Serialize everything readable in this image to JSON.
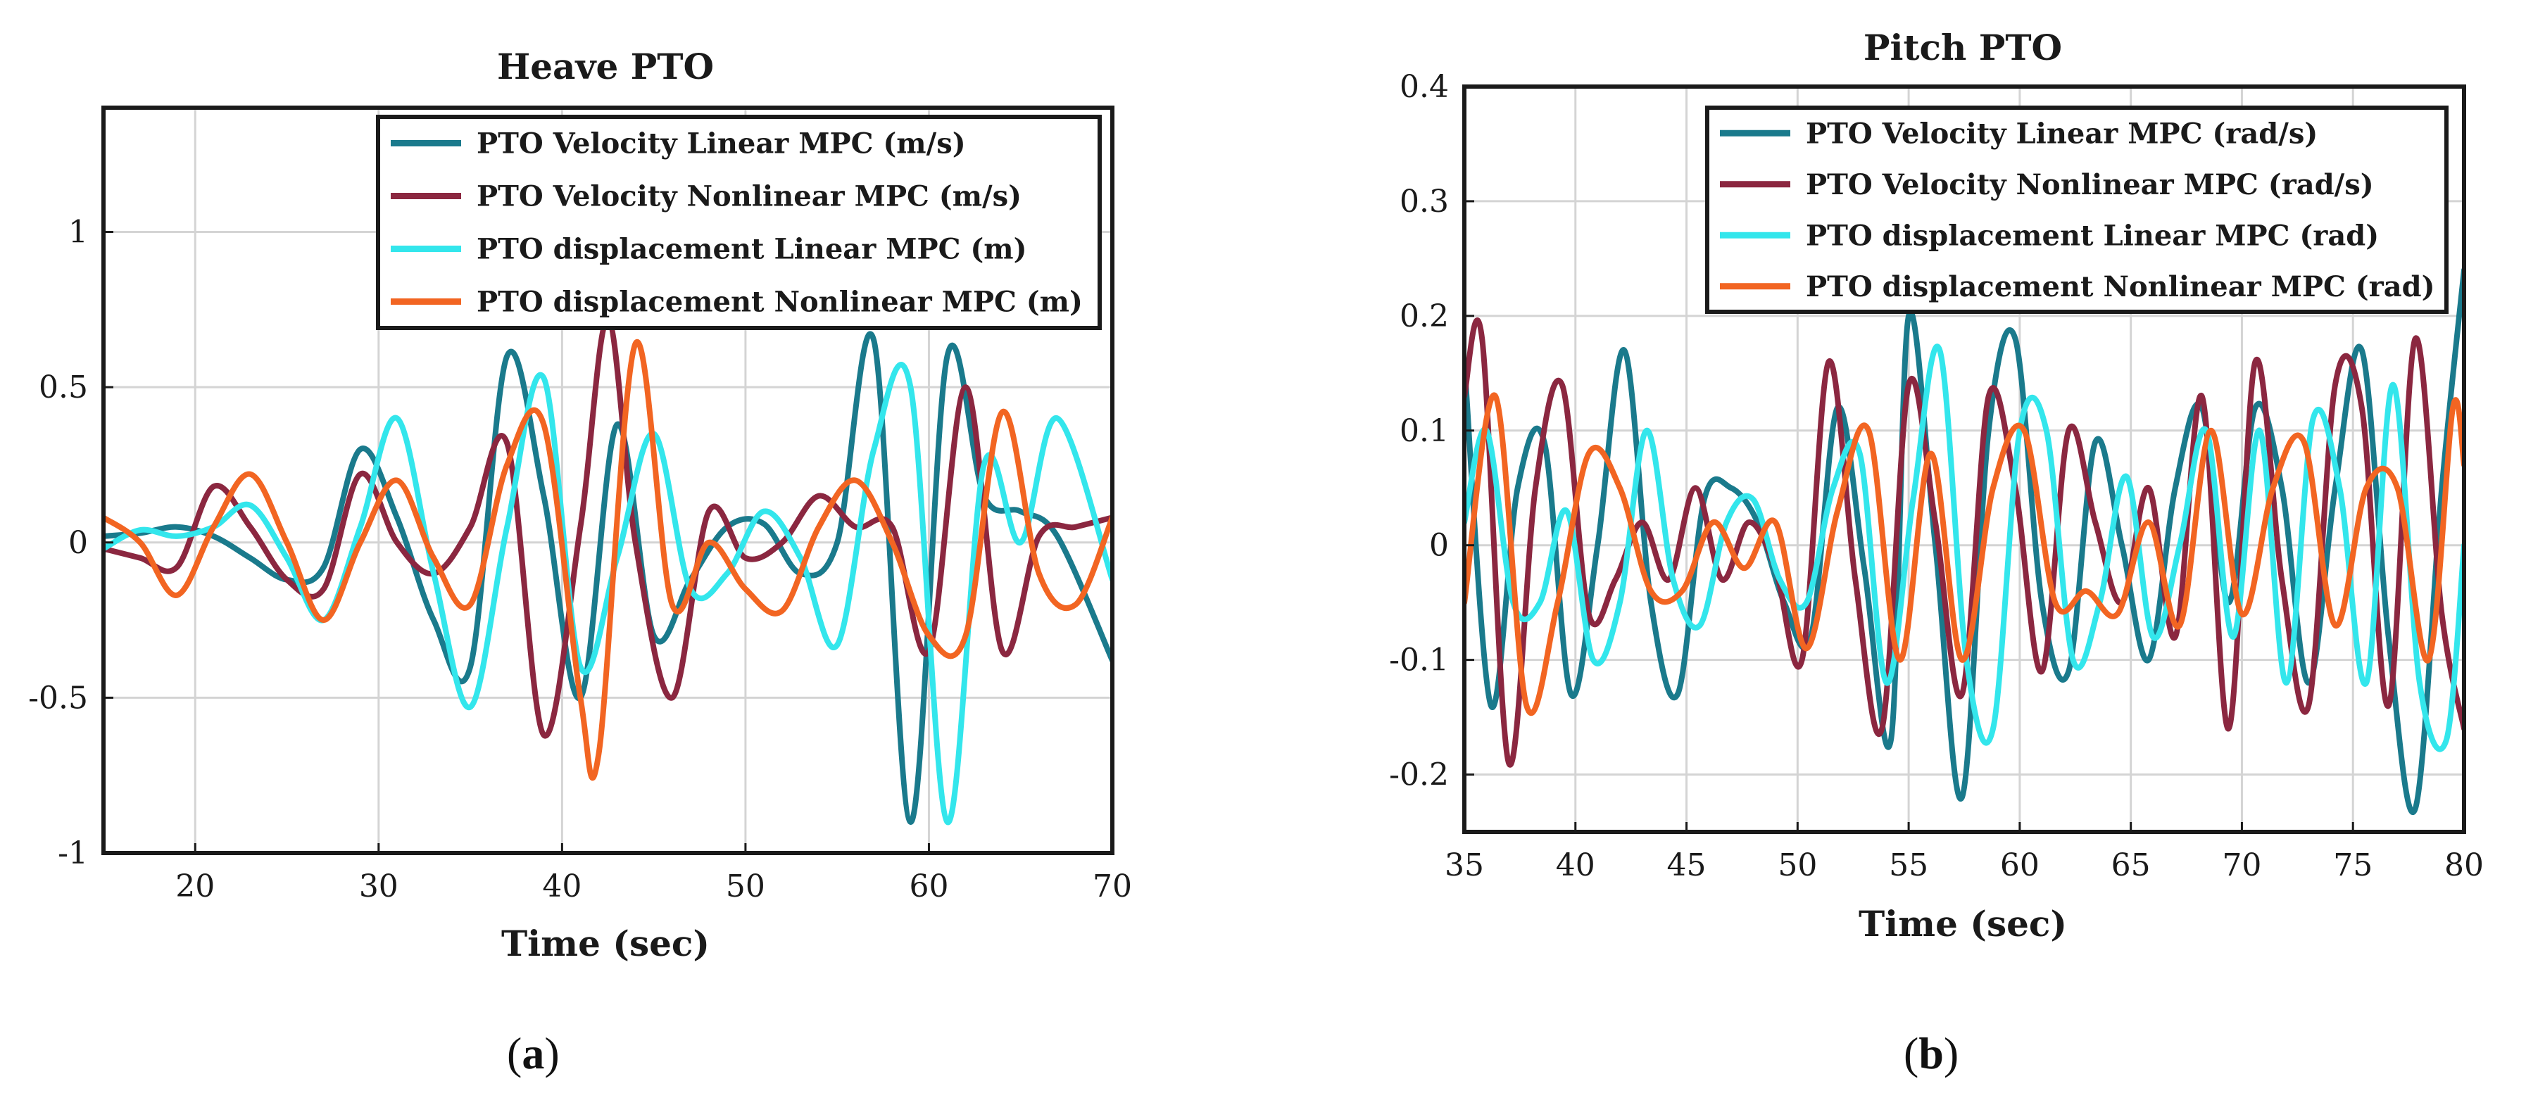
{
  "figure": {
    "captions": [
      {
        "open": "(",
        "letter": "a",
        "close": ")"
      },
      {
        "open": "(",
        "letter": "b",
        "close": ")"
      }
    ]
  },
  "chart_data": [
    {
      "type": "line",
      "title": "Heave PTO",
      "xlabel": "Time (sec)",
      "ylabel": "",
      "xlim": [
        15,
        70
      ],
      "ylim": [
        -1,
        1.4
      ],
      "xticks": [
        20,
        30,
        40,
        50,
        60,
        70
      ],
      "xtick_labels": [
        "20",
        "30",
        "40",
        "50",
        "60",
        "70"
      ],
      "yticks": [
        -1,
        -0.5,
        0,
        0.5,
        1
      ],
      "ytick_labels": [
        "-1",
        "-0.5",
        "0",
        "0.5",
        "1"
      ],
      "grid": true,
      "legend_position": "top-right",
      "series": [
        {
          "name": "PTO Velocity Linear MPC (m/s)",
          "color": "#1a7a8c",
          "x": [
            15,
            17,
            19,
            21,
            23,
            25,
            27,
            29,
            31,
            33,
            35,
            37,
            39,
            41,
            43,
            45,
            47,
            49,
            51,
            53,
            55,
            57,
            59,
            61,
            63,
            65,
            67,
            70
          ],
          "y": [
            0.02,
            0.03,
            0.05,
            0.02,
            -0.05,
            -0.12,
            -0.08,
            0.3,
            0.08,
            -0.25,
            -0.4,
            0.6,
            0.15,
            -0.5,
            0.38,
            -0.3,
            -0.12,
            0.05,
            0.06,
            -0.1,
            0.0,
            0.65,
            -0.9,
            0.6,
            0.15,
            0.1,
            0.02,
            -0.38
          ]
        },
        {
          "name": "PTO Velocity Nonlinear MPC (m/s)",
          "color": "#8b2740",
          "x": [
            15,
            17,
            19,
            21,
            23,
            25,
            27,
            29,
            31,
            33,
            35,
            37,
            39,
            41,
            42.5,
            44,
            46,
            48,
            50,
            52,
            54,
            56,
            58,
            60,
            62,
            64,
            66,
            68,
            70
          ],
          "y": [
            -0.02,
            -0.05,
            -0.08,
            0.18,
            0.05,
            -0.12,
            -0.15,
            0.22,
            0.0,
            -0.1,
            0.05,
            0.32,
            -0.62,
            0.05,
            0.72,
            0.0,
            -0.5,
            0.1,
            -0.05,
            0.0,
            0.15,
            0.05,
            0.05,
            -0.35,
            0.5,
            -0.35,
            0.02,
            0.05,
            0.08
          ]
        },
        {
          "name": "PTO displacement Linear MPC (m)",
          "color": "#33e6ec",
          "x": [
            15,
            17,
            19,
            21,
            23,
            25,
            27,
            29,
            31,
            33,
            35,
            37,
            39,
            41,
            43,
            45,
            47,
            49,
            51,
            53,
            55,
            57,
            59,
            61,
            63,
            65,
            67,
            70
          ],
          "y": [
            -0.02,
            0.04,
            0.02,
            0.05,
            0.12,
            -0.05,
            -0.25,
            0.05,
            0.4,
            -0.1,
            -0.53,
            0.05,
            0.53,
            -0.4,
            -0.05,
            0.35,
            -0.15,
            -0.1,
            0.1,
            -0.05,
            -0.33,
            0.3,
            0.5,
            -0.9,
            0.25,
            0.0,
            0.4,
            -0.12
          ]
        },
        {
          "name": "PTO displacement Nonlinear MPC (m)",
          "color": "#f26522",
          "x": [
            15,
            17,
            19,
            21,
            23,
            25,
            27,
            29,
            31,
            33,
            35,
            37,
            39,
            41,
            42,
            44,
            46,
            48,
            50,
            52,
            54,
            56,
            58,
            60,
            62,
            64,
            66,
            68,
            70
          ],
          "y": [
            0.08,
            0.0,
            -0.17,
            0.05,
            0.22,
            0.0,
            -0.25,
            0.0,
            0.2,
            -0.05,
            -0.2,
            0.25,
            0.38,
            -0.5,
            -0.68,
            0.64,
            -0.2,
            0.0,
            -0.15,
            -0.22,
            0.05,
            0.2,
            0.0,
            -0.3,
            -0.3,
            0.42,
            -0.1,
            -0.2,
            0.08
          ]
        }
      ]
    },
    {
      "type": "line",
      "title": "Pitch PTO",
      "xlabel": "Time (sec)",
      "ylabel": "",
      "xlim": [
        35,
        80
      ],
      "ylim": [
        -0.25,
        0.4
      ],
      "xticks": [
        35,
        40,
        45,
        50,
        55,
        60,
        65,
        70,
        75,
        80
      ],
      "xtick_labels": [
        "35",
        "40",
        "45",
        "50",
        "55",
        "60",
        "65",
        "70",
        "75",
        "80"
      ],
      "yticks": [
        -0.2,
        -0.1,
        0,
        0.1,
        0.2,
        0.3,
        0.4
      ],
      "ytick_labels": [
        "-0.2",
        "-0.1",
        "0",
        "0.1",
        "0.2",
        "0.3",
        "0.4"
      ],
      "grid": true,
      "legend_position": "top-right",
      "series": [
        {
          "name": "PTO Velocity Linear MPC (rad/s)",
          "color": "#1a7a8c",
          "x": [
            35,
            36.2,
            37.4,
            38.6,
            39.8,
            41,
            42.2,
            43.4,
            44.6,
            45.8,
            47,
            48.2,
            49.4,
            50.6,
            51.8,
            53,
            54.2,
            55,
            56.2,
            57.4,
            58.6,
            59.8,
            61,
            62.2,
            63.4,
            64.6,
            65.8,
            67,
            68.2,
            69.4,
            70.6,
            71.8,
            73,
            74.2,
            75.4,
            76.6,
            77.8,
            79,
            80
          ],
          "y": [
            0.16,
            -0.14,
            0.05,
            0.09,
            -0.13,
            0.0,
            0.17,
            -0.05,
            -0.13,
            0.04,
            0.05,
            0.02,
            -0.05,
            -0.08,
            0.12,
            -0.02,
            -0.17,
            0.2,
            0.0,
            -0.22,
            0.1,
            0.18,
            -0.05,
            -0.11,
            0.09,
            0.0,
            -0.1,
            0.05,
            0.12,
            -0.05,
            0.12,
            0.05,
            -0.12,
            0.05,
            0.17,
            -0.08,
            -0.23,
            0.05,
            0.24
          ]
        },
        {
          "name": "PTO Velocity Nonlinear MPC (rad/s)",
          "color": "#8b2740",
          "x": [
            35,
            35.8,
            37,
            38.2,
            39.4,
            40.6,
            41.8,
            43,
            44.2,
            45.4,
            46.6,
            47.8,
            49,
            50.2,
            51.4,
            52.6,
            53.8,
            55,
            56.2,
            57.4,
            58.6,
            59.8,
            61,
            62.2,
            63.4,
            64.6,
            65.8,
            67,
            68.2,
            69.4,
            70.6,
            71.8,
            73,
            74.2,
            75.4,
            76.6,
            77.8,
            79,
            80
          ],
          "y": [
            0.13,
            0.18,
            -0.19,
            0.05,
            0.14,
            -0.06,
            -0.03,
            0.02,
            -0.03,
            0.05,
            -0.03,
            0.02,
            -0.02,
            -0.1,
            0.16,
            -0.03,
            -0.16,
            0.14,
            0.02,
            -0.13,
            0.13,
            0.05,
            -0.11,
            0.1,
            0.02,
            -0.05,
            0.05,
            -0.08,
            0.13,
            -0.16,
            0.16,
            -0.03,
            -0.14,
            0.14,
            0.12,
            -0.14,
            0.18,
            -0.06,
            -0.16
          ]
        },
        {
          "name": "PTO displacement Linear MPC (rad)",
          "color": "#33e6ec",
          "x": [
            35,
            36,
            37.2,
            38.4,
            39.6,
            40.8,
            42,
            43.2,
            44.4,
            45.6,
            46.8,
            48,
            49.2,
            50.4,
            51.6,
            52.8,
            54,
            55.2,
            56.4,
            57.6,
            58.8,
            60,
            61.2,
            62.4,
            63.6,
            64.8,
            66,
            67.2,
            68.4,
            69.6,
            70.8,
            72,
            73.2,
            74.4,
            75.6,
            76.8,
            78,
            79.2,
            80
          ],
          "y": [
            0.02,
            0.1,
            -0.05,
            -0.05,
            0.03,
            -0.1,
            -0.05,
            0.1,
            -0.03,
            -0.07,
            0.02,
            0.04,
            -0.03,
            -0.05,
            0.05,
            0.08,
            -0.12,
            0.04,
            0.17,
            -0.1,
            -0.16,
            0.1,
            0.1,
            -0.1,
            -0.05,
            0.06,
            -0.08,
            0.0,
            0.1,
            -0.08,
            0.1,
            -0.12,
            0.11,
            0.05,
            -0.12,
            0.14,
            -0.12,
            -0.17,
            0.0
          ]
        },
        {
          "name": "PTO displacement Nonlinear MPC (rad)",
          "color": "#f26522",
          "x": [
            35,
            36.4,
            37.8,
            39.2,
            40.6,
            42,
            43.4,
            44.8,
            46.2,
            47.6,
            49,
            50.4,
            51.8,
            53.2,
            54.6,
            56,
            57.4,
            58.8,
            60.2,
            61.6,
            63,
            64.4,
            65.8,
            67.2,
            68.6,
            70,
            71.4,
            72.8,
            74.2,
            75.6,
            77,
            78.4,
            79.5,
            80
          ],
          "y": [
            -0.05,
            0.13,
            -0.14,
            -0.05,
            0.08,
            0.05,
            -0.04,
            -0.04,
            0.02,
            -0.02,
            0.02,
            -0.09,
            0.03,
            0.1,
            -0.1,
            0.08,
            -0.1,
            0.05,
            0.1,
            -0.05,
            -0.04,
            -0.06,
            0.02,
            -0.07,
            0.1,
            -0.06,
            0.05,
            0.09,
            -0.07,
            0.05,
            0.05,
            -0.1,
            0.12,
            0.07
          ]
        }
      ]
    }
  ]
}
